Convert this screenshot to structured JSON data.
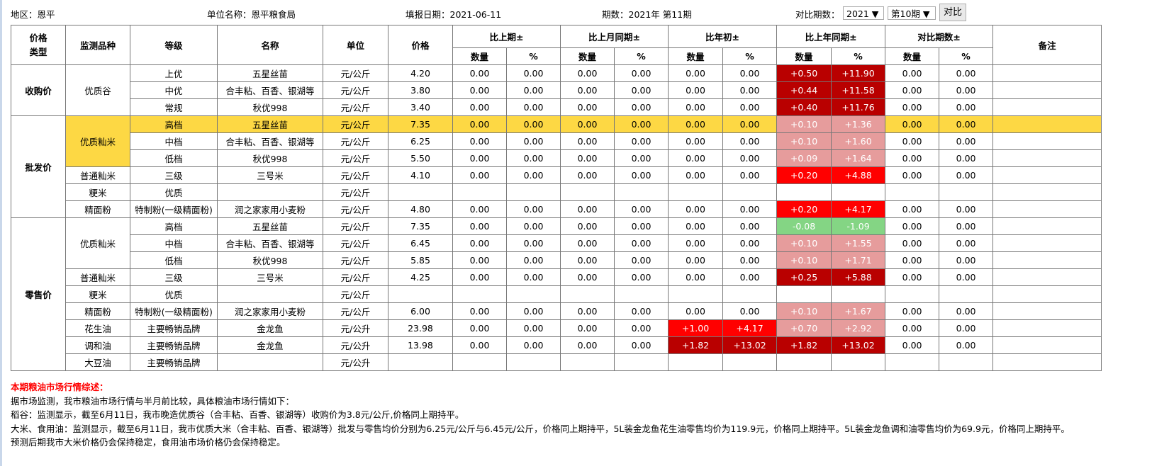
{
  "header": {
    "region": "地区：恩平",
    "unit_name": "单位名称：恩平粮食局",
    "fill_date": "填报日期：2021-06-11",
    "period": "期数：2021年 第11期",
    "compare_label": "对比期数：",
    "compare_year": "2021 ▼",
    "compare_period": "第10期 ▼",
    "compare_button": "对比"
  },
  "colors": {
    "dark": "#b90000",
    "red": "#ff0000",
    "pink": "#e69c9c",
    "green": "#84d584",
    "highlight": "#fdd844"
  },
  "columns": {
    "type": "价格类型",
    "variety": "监测品种",
    "grade": "等级",
    "name": "名称",
    "unit": "单位",
    "price": "价格",
    "groups": [
      "比上期±",
      "比上月同期±",
      "比年初±",
      "比上年同期±",
      "对比期数±"
    ],
    "qty": "数量",
    "pct": "%",
    "remark": "备注"
  },
  "rows": [
    {
      "type": "收购价",
      "type_span": 3,
      "variety": "优质谷",
      "variety_span": 3,
      "grade": "上优",
      "name": "五星丝苗",
      "unit": "元/公斤",
      "price": "4.20",
      "vals": [
        "0.00",
        "0.00",
        "0.00",
        "0.00",
        "0.00",
        "0.00",
        "+0.50",
        "+11.90",
        "0.00",
        "0.00"
      ],
      "ytd": "",
      "yoy": "dark"
    },
    {
      "grade": "中优",
      "name": "合丰粘、百香、银湖等",
      "unit": "元/公斤",
      "price": "3.80",
      "vals": [
        "0.00",
        "0.00",
        "0.00",
        "0.00",
        "0.00",
        "0.00",
        "+0.44",
        "+11.58",
        "0.00",
        "0.00"
      ],
      "yoy": "dark"
    },
    {
      "grade": "常规",
      "name": "秋优998",
      "unit": "元/公斤",
      "price": "3.40",
      "vals": [
        "0.00",
        "0.00",
        "0.00",
        "0.00",
        "0.00",
        "0.00",
        "+0.40",
        "+11.76",
        "0.00",
        "0.00"
      ],
      "yoy": "dark"
    },
    {
      "type": "批发价",
      "type_span": 6,
      "variety": "优质籼米",
      "variety_span": 3,
      "variety_hl": true,
      "highlight": true,
      "grade": "高档",
      "name": "五星丝苗",
      "unit": "元/公斤",
      "price": "7.35",
      "vals": [
        "0.00",
        "0.00",
        "0.00",
        "0.00",
        "0.00",
        "0.00",
        "+0.10",
        "+1.36",
        "0.00",
        "0.00"
      ],
      "yoy": "pink"
    },
    {
      "grade": "中档",
      "name": "合丰粘、百香、银湖等",
      "unit": "元/公斤",
      "price": "6.25",
      "vals": [
        "0.00",
        "0.00",
        "0.00",
        "0.00",
        "0.00",
        "0.00",
        "+0.10",
        "+1.60",
        "0.00",
        "0.00"
      ],
      "yoy": "pink"
    },
    {
      "grade": "低档",
      "name": "秋优998",
      "unit": "元/公斤",
      "price": "5.50",
      "vals": [
        "0.00",
        "0.00",
        "0.00",
        "0.00",
        "0.00",
        "0.00",
        "+0.09",
        "+1.64",
        "0.00",
        "0.00"
      ],
      "yoy": "pink"
    },
    {
      "variety": "普通籼米",
      "variety_span": 1,
      "grade": "三级",
      "name": "三号米",
      "unit": "元/公斤",
      "price": "4.10",
      "vals": [
        "0.00",
        "0.00",
        "0.00",
        "0.00",
        "0.00",
        "0.00",
        "+0.20",
        "+4.88",
        "0.00",
        "0.00"
      ],
      "yoy": "red"
    },
    {
      "variety": "粳米",
      "variety_span": 1,
      "grade": "优质",
      "name": "",
      "unit": "元/公斤",
      "price": "",
      "vals": [
        "",
        "",
        "",
        "",
        "",
        "",
        "",
        "",
        "",
        ""
      ]
    },
    {
      "variety": "精面粉",
      "variety_span": 1,
      "grade": "特制粉(一级精面粉)",
      "name": "润之家家用小麦粉",
      "unit": "元/公斤",
      "price": "4.80",
      "vals": [
        "0.00",
        "0.00",
        "0.00",
        "0.00",
        "0.00",
        "0.00",
        "+0.20",
        "+4.17",
        "0.00",
        "0.00"
      ],
      "yoy": "red"
    },
    {
      "type": "零售价",
      "type_span": 9,
      "variety": "优质籼米",
      "variety_span": 3,
      "grade": "高档",
      "name": "五星丝苗",
      "unit": "元/公斤",
      "price": "7.35",
      "vals": [
        "0.00",
        "0.00",
        "0.00",
        "0.00",
        "0.00",
        "0.00",
        "-0.08",
        "-1.09",
        "0.00",
        "0.00"
      ],
      "yoy": "green"
    },
    {
      "grade": "中档",
      "name": "合丰粘、百香、银湖等",
      "unit": "元/公斤",
      "price": "6.45",
      "vals": [
        "0.00",
        "0.00",
        "0.00",
        "0.00",
        "0.00",
        "0.00",
        "+0.10",
        "+1.55",
        "0.00",
        "0.00"
      ],
      "yoy": "pink"
    },
    {
      "grade": "低档",
      "name": "秋优998",
      "unit": "元/公斤",
      "price": "5.85",
      "vals": [
        "0.00",
        "0.00",
        "0.00",
        "0.00",
        "0.00",
        "0.00",
        "+0.10",
        "+1.71",
        "0.00",
        "0.00"
      ],
      "yoy": "pink"
    },
    {
      "variety": "普通籼米",
      "variety_span": 1,
      "grade": "三级",
      "name": "三号米",
      "unit": "元/公斤",
      "price": "4.25",
      "vals": [
        "0.00",
        "0.00",
        "0.00",
        "0.00",
        "0.00",
        "0.00",
        "+0.25",
        "+5.88",
        "0.00",
        "0.00"
      ],
      "yoy": "dark"
    },
    {
      "variety": "粳米",
      "variety_span": 1,
      "grade": "优质",
      "name": "",
      "unit": "元/公斤",
      "price": "",
      "vals": [
        "",
        "",
        "",
        "",
        "",
        "",
        "",
        "",
        "",
        ""
      ]
    },
    {
      "variety": "精面粉",
      "variety_span": 1,
      "grade": "特制粉(一级精面粉)",
      "name": "润之家家用小麦粉",
      "unit": "元/公斤",
      "price": "6.00",
      "vals": [
        "0.00",
        "0.00",
        "0.00",
        "0.00",
        "0.00",
        "0.00",
        "+0.10",
        "+1.67",
        "0.00",
        "0.00"
      ],
      "yoy": "pink"
    },
    {
      "variety": "花生油",
      "variety_span": 1,
      "grade": "主要畅销品牌",
      "name": "金龙鱼",
      "unit": "元/公升",
      "price": "23.98",
      "vals": [
        "0.00",
        "0.00",
        "0.00",
        "0.00",
        "+1.00",
        "+4.17",
        "+0.70",
        "+2.92",
        "0.00",
        "0.00"
      ],
      "ytd": "red",
      "yoy": "pink"
    },
    {
      "variety": "调和油",
      "variety_span": 1,
      "grade": "主要畅销品牌",
      "name": "金龙鱼",
      "unit": "元/公升",
      "price": "13.98",
      "vals": [
        "0.00",
        "0.00",
        "0.00",
        "0.00",
        "+1.82",
        "+13.02",
        "+1.82",
        "+13.02",
        "0.00",
        "0.00"
      ],
      "ytd": "dark",
      "yoy": "dark"
    },
    {
      "variety": "大豆油",
      "variety_span": 1,
      "grade": "主要畅销品牌",
      "name": "",
      "unit": "元/公升",
      "price": "",
      "vals": [
        "",
        "",
        "",
        "",
        "",
        "",
        "",
        "",
        "",
        ""
      ]
    }
  ],
  "summary": {
    "title": "本期粮油市场行情综述：",
    "lines": [
      "据市场监测，我市粮油市场行情与半月前比较，具体粮油市场行情如下：",
      "稻谷：监测显示，截至6月11日，我市晚造优质谷（合丰粘、百香、银湖等）收购价为3.8元/公斤,价格同上期持平。",
      "大米、食用油：监测显示，截至6月11日，我市优质大米（合丰粘、百香、银湖等）批发与零售均价分别为6.25元/公斤与6.45元/公斤，价格同上期持平，5L装金龙鱼花生油零售均价为119.9元，价格同上期持平。5L装金龙鱼调和油零售均价为69.9元，价格同上期持平。",
      "预测后期我市大米价格仍会保持稳定，食用油市场价格仍会保持稳定。"
    ]
  }
}
